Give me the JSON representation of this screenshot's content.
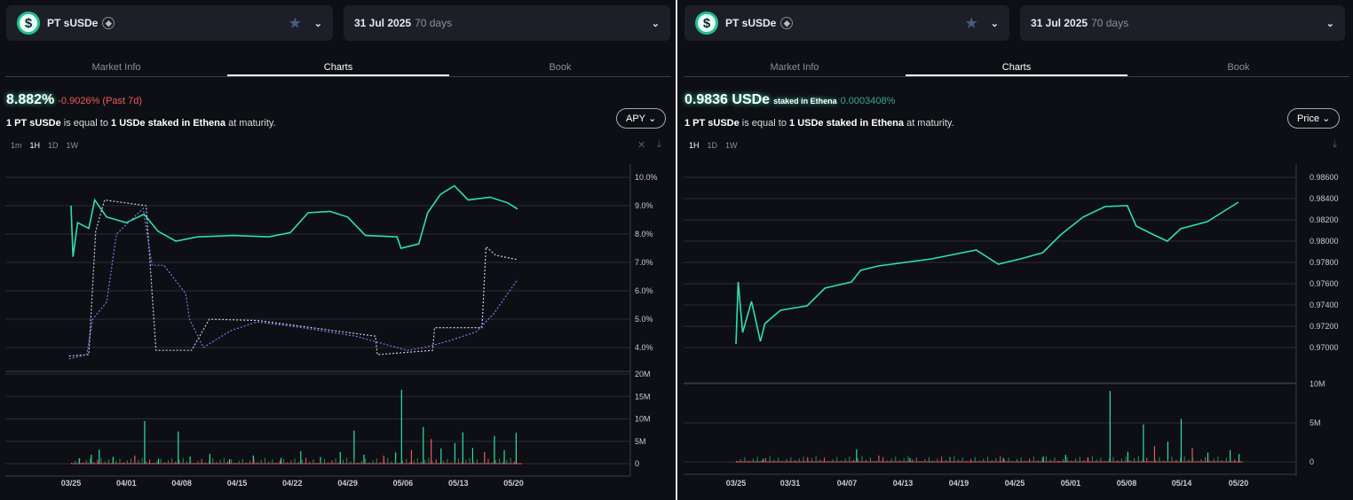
{
  "left": {
    "selector": {
      "name": "PT sUSDe",
      "chain_icon": "ethereum-icon",
      "logo_icon": "dollar-coin-icon"
    },
    "maturity": {
      "date": "31 Jul 2025",
      "days": "70 days"
    },
    "tabs": [
      "Market Info",
      "Charts",
      "Book"
    ],
    "active_tab": "Charts",
    "headline": {
      "value": "8.882%",
      "change": "-0.9026% (Past 7d)"
    },
    "description": {
      "a": "1 PT sUSDe",
      "b": " is equal to ",
      "c": "1 USDe staked in Ethena",
      "d": " at maturity."
    },
    "metric_dropdown": "APY",
    "ranges": [
      "1m",
      "1H",
      "1D",
      "1W"
    ],
    "active_range": "1H",
    "colors": {
      "line": "#2fe0a8",
      "dash1": "#c8c8f0",
      "dash2": "#7b78f0",
      "up": "#2fe0a8",
      "down": "#ef5a5a",
      "negative": "#ef5a5a"
    }
  },
  "right": {
    "selector": {
      "name": "PT sUSDe",
      "chain_icon": "ethereum-icon",
      "logo_icon": "dollar-coin-icon"
    },
    "maturity": {
      "date": "31 Jul 2025",
      "days": "70 days"
    },
    "tabs": [
      "Market Info",
      "Charts",
      "Book"
    ],
    "active_tab": "Charts",
    "headline": {
      "value": "0.9836 USDe",
      "unit_note": "staked in Ethena",
      "change": "0.0003408%"
    },
    "description": {
      "a": "1 PT sUSDe",
      "b": " is equal to ",
      "c": "1 USDe staked in Ethena",
      "d": " at maturity."
    },
    "metric_dropdown": "Price",
    "ranges": [
      "1H",
      "1D",
      "1W"
    ],
    "active_range": "1H"
  },
  "chart_data": [
    {
      "type": "line",
      "ylim": [
        3.5,
        10.5
      ],
      "yticks": [
        "4.0%",
        "5.0%",
        "6.0%",
        "7.0%",
        "8.0%",
        "9.0%",
        "10.0%"
      ],
      "xticks": [
        "03/25",
        "04/01",
        "04/08",
        "04/15",
        "04/22",
        "04/29",
        "05/06",
        "05/13",
        "05/20"
      ],
      "series": [
        {
          "style": "solid",
          "points": [
            [
              "03/25 00",
              9.0
            ],
            [
              "03/25 06",
              7.2
            ],
            [
              "03/25 20",
              8.4
            ],
            [
              "03/27 06",
              8.2
            ],
            [
              "03/28 00",
              9.2
            ],
            [
              "03/29 12",
              8.6
            ],
            [
              "04/01 00",
              8.4
            ],
            [
              "04/03 06",
              8.7
            ],
            [
              "04/05 00",
              8.1
            ],
            [
              "04/07 06",
              7.75
            ],
            [
              "04/10 00",
              7.9
            ],
            [
              "04/14 12",
              7.95
            ],
            [
              "04/19 00",
              7.9
            ],
            [
              "04/21 18",
              8.05
            ],
            [
              "04/24 00",
              8.75
            ],
            [
              "04/26 18",
              8.8
            ],
            [
              "04/29 00",
              8.6
            ],
            [
              "05/01 06",
              7.95
            ],
            [
              "05/05 06",
              7.9
            ],
            [
              "05/05 18",
              7.5
            ],
            [
              "05/08 00",
              7.65
            ],
            [
              "05/09 03",
              8.75
            ],
            [
              "05/10 18",
              9.4
            ],
            [
              "05/12 12",
              9.7
            ],
            [
              "05/14 06",
              9.2
            ],
            [
              "05/17 00",
              9.3
            ],
            [
              "05/19 06",
              9.1
            ],
            [
              "05/20 12",
              8.88
            ]
          ]
        },
        {
          "style": "dashed-light",
          "points": [
            [
              "03/24 18",
              3.7
            ],
            [
              "03/27 06",
              3.75
            ],
            [
              "03/28 03",
              8.1
            ],
            [
              "03/29 06",
              9.2
            ],
            [
              "04/03 12",
              9.0
            ],
            [
              "04/04 18",
              3.9
            ],
            [
              "04/09 06",
              3.9
            ],
            [
              "04/11 12",
              5.0
            ],
            [
              "04/17 18",
              4.95
            ],
            [
              "05/02 12",
              4.4
            ],
            [
              "05/02 18",
              3.75
            ],
            [
              "05/09 18",
              3.9
            ],
            [
              "05/10 00",
              4.7
            ],
            [
              "05/16 00",
              4.7
            ],
            [
              "05/16 12",
              7.55
            ],
            [
              "05/17 18",
              7.25
            ],
            [
              "05/20 12",
              7.1
            ]
          ]
        },
        {
          "style": "dashed-purple",
          "points": [
            [
              "03/24 18",
              3.6
            ],
            [
              "03/27 00",
              3.75
            ],
            [
              "03/27 18",
              5.0
            ],
            [
              "03/29 12",
              5.6
            ],
            [
              "03/30 18",
              8.0
            ],
            [
              "04/02 00",
              8.6
            ],
            [
              "04/03 03",
              8.9
            ],
            [
              "04/04 06",
              6.9
            ],
            [
              "04/05 18",
              6.9
            ],
            [
              "04/08 12",
              5.9
            ],
            [
              "04/09 00",
              5.0
            ],
            [
              "04/10 18",
              4.0
            ],
            [
              "04/14 06",
              4.6
            ],
            [
              "04/17 12",
              4.9
            ],
            [
              "04/23 06",
              4.7
            ],
            [
              "04/30 00",
              4.4
            ],
            [
              "05/06 12",
              3.9
            ],
            [
              "05/08 18",
              4.0
            ],
            [
              "05/12 00",
              4.25
            ],
            [
              "05/15 06",
              4.55
            ],
            [
              "05/17 12",
              5.2
            ],
            [
              "05/20 12",
              6.4
            ]
          ]
        }
      ],
      "volume": {
        "yticks": [
          "0",
          "5M",
          "10M",
          "15M",
          "20M"
        ],
        "ymax": 20,
        "bars": [
          [
            "03/26 00",
            1.2,
            "up"
          ],
          [
            "03/27 12",
            2.0,
            "up"
          ],
          [
            "03/28 12",
            3.1,
            "up"
          ],
          [
            "03/30 06",
            1.5,
            "up"
          ],
          [
            "04/02 00",
            1.8,
            "down"
          ],
          [
            "04/03 06",
            9.5,
            "up"
          ],
          [
            "04/05 00",
            1.1,
            "up"
          ],
          [
            "04/07 12",
            7.2,
            "up"
          ],
          [
            "04/09 00",
            1.6,
            "up"
          ],
          [
            "04/11 12",
            2.2,
            "up"
          ],
          [
            "04/14 00",
            1.0,
            "up"
          ],
          [
            "04/17 00",
            1.8,
            "up"
          ],
          [
            "04/20 12",
            1.3,
            "up"
          ],
          [
            "04/23 00",
            2.8,
            "up"
          ],
          [
            "04/25 12",
            1.5,
            "up"
          ],
          [
            "04/28 00",
            2.6,
            "up"
          ],
          [
            "04/29 18",
            7.4,
            "up"
          ],
          [
            "05/01 00",
            2.0,
            "up"
          ],
          [
            "05/03 12",
            1.8,
            "down"
          ],
          [
            "05/05 00",
            2.5,
            "up"
          ],
          [
            "05/05 18",
            16.5,
            "up"
          ],
          [
            "05/07 00",
            3.0,
            "down"
          ],
          [
            "05/08 12",
            8.2,
            "up"
          ],
          [
            "05/09 12",
            5.5,
            "down"
          ],
          [
            "05/10 18",
            3.4,
            "up"
          ],
          [
            "05/12 12",
            4.6,
            "up"
          ],
          [
            "05/13 12",
            7.0,
            "up"
          ],
          [
            "05/14 18",
            3.5,
            "up"
          ],
          [
            "05/16 06",
            2.6,
            "down"
          ],
          [
            "05/17 12",
            6.2,
            "up"
          ],
          [
            "05/18 18",
            3.0,
            "up"
          ],
          [
            "05/20 06",
            6.9,
            "up"
          ]
        ]
      }
    },
    {
      "type": "line",
      "ylim": [
        0.9688,
        0.9872
      ],
      "yticks": [
        "0.97000",
        "0.97200",
        "0.97400",
        "0.97600",
        "0.97800",
        "0.98000",
        "0.98200",
        "0.98400",
        "0.98600"
      ],
      "xticks": [
        "03/25",
        "03/31",
        "04/07",
        "04/13",
        "04/19",
        "04/25",
        "05/01",
        "05/08",
        "05/14",
        "05/20"
      ],
      "series": [
        {
          "style": "solid",
          "points": [
            [
              "03/25 00",
              0.97033
            ],
            [
              "03/25 06",
              0.97617
            ],
            [
              "03/25 18",
              0.97142
            ],
            [
              "03/26 18",
              0.97433
            ],
            [
              "03/27 18",
              0.97058
            ],
            [
              "03/28 06",
              0.97225
            ],
            [
              "03/30 00",
              0.9735
            ],
            [
              "04/02 00",
              0.97392
            ],
            [
              "04/04 00",
              0.97558
            ],
            [
              "04/07 00",
              0.97617
            ],
            [
              "04/08 00",
              0.97725
            ],
            [
              "04/10 00",
              0.97767
            ],
            [
              "04/16 00",
              0.97833
            ],
            [
              "04/21 00",
              0.97917
            ],
            [
              "04/23 12",
              0.97783
            ],
            [
              "04/26 00",
              0.97833
            ],
            [
              "04/28 12",
              0.97892
            ],
            [
              "04/30 12",
              0.98058
            ],
            [
              "05/03 00",
              0.98225
            ],
            [
              "05/05 12",
              0.98325
            ],
            [
              "05/08 00",
              0.98333
            ],
            [
              "05/09 00",
              0.98142
            ],
            [
              "05/11 00",
              0.98058
            ],
            [
              "05/12 12",
              0.98
            ],
            [
              "05/14 00",
              0.98117
            ],
            [
              "05/17 00",
              0.98183
            ],
            [
              "05/20 12",
              0.98367
            ]
          ]
        }
      ],
      "volume": {
        "yticks": [
          "0",
          "5M",
          "10M"
        ],
        "ymax": 11,
        "bars": [
          [
            "03/28 00",
            0.4,
            "up"
          ],
          [
            "04/02 00",
            0.6,
            "down"
          ],
          [
            "04/07 12",
            1.6,
            "up"
          ],
          [
            "04/10 00",
            0.8,
            "down"
          ],
          [
            "04/13 12",
            0.5,
            "up"
          ],
          [
            "04/18 00",
            0.6,
            "up"
          ],
          [
            "04/24 00",
            0.5,
            "up"
          ],
          [
            "04/28 12",
            0.7,
            "up"
          ],
          [
            "05/01 00",
            0.9,
            "up"
          ],
          [
            "05/03 12",
            0.6,
            "down"
          ],
          [
            "05/06 00",
            9.1,
            "up"
          ],
          [
            "05/08 00",
            1.3,
            "up"
          ],
          [
            "05/09 18",
            4.8,
            "up"
          ],
          [
            "05/11 00",
            2.0,
            "down"
          ],
          [
            "05/12 12",
            2.6,
            "up"
          ],
          [
            "05/14 00",
            5.5,
            "up"
          ],
          [
            "05/15 06",
            1.8,
            "down"
          ],
          [
            "05/17 00",
            1.2,
            "up"
          ],
          [
            "05/19 12",
            1.5,
            "up"
          ],
          [
            "05/20 12",
            1.0,
            "up"
          ]
        ]
      }
    }
  ]
}
